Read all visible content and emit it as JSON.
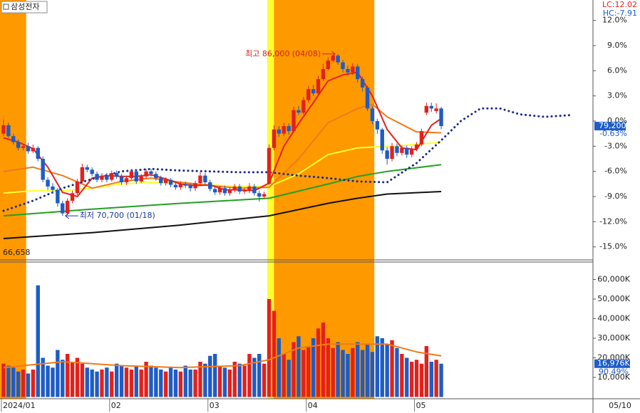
{
  "header": {
    "stock_name": "삼성전자",
    "lc": "LC:12.02",
    "hc": "HC:-7.91"
  },
  "chart_data": [
    {
      "type": "candlestick",
      "up_color": "#e3211c",
      "down_color": "#1e5cc6",
      "xlim": [
        -0.72,
        119.86
      ],
      "ylim": [
        -16.55,
        14.43
      ],
      "yticks": [
        {
          "value": 12,
          "label": "12.0%"
        },
        {
          "value": 9,
          "label": "9.0%"
        },
        {
          "value": 6,
          "label": "6.0%"
        },
        {
          "value": 3,
          "label": "3.0%"
        },
        {
          "value": 0,
          "label": "0.0%"
        },
        {
          "value": -3,
          "label": "-3.0%"
        },
        {
          "value": -6,
          "label": "-6.0%"
        },
        {
          "value": -9,
          "label": "-9.0%"
        },
        {
          "value": -12,
          "label": "-12.0%"
        },
        {
          "value": -15,
          "label": "-15.0%"
        }
      ],
      "highlights": [
        {
          "start": -0.72,
          "end": 4.6,
          "color": "#ff9900"
        },
        {
          "start": 53.6,
          "end": 55.0,
          "color": "#ffff33"
        },
        {
          "start": 55.0,
          "end": 75.4,
          "color": "#ff9900"
        }
      ],
      "open": [
        -1.5,
        -0.5,
        -1.8,
        -2.5,
        -3.2,
        -3.0,
        -3.6,
        -3.2,
        -4.5,
        -7.0,
        -7.8,
        -8.2,
        -9.8,
        -11.0,
        -9.5,
        -8.6,
        -7.2,
        -5.5,
        -5.8,
        -6.3,
        -7.0,
        -6.5,
        -7.0,
        -6.2,
        -6.6,
        -7.3,
        -6.8,
        -6.0,
        -7.2,
        -6.6,
        -6.0,
        -6.3,
        -6.8,
        -7.4,
        -7.0,
        -7.6,
        -7.9,
        -7.5,
        -7.7,
        -8.0,
        -7.4,
        -6.5,
        -7.3,
        -8.1,
        -8.5,
        -8.0,
        -8.6,
        -8.2,
        -7.8,
        -8.4,
        -8.3,
        -7.8,
        -8.6,
        -9.0,
        -7.5,
        -3.2,
        -1.0,
        -1.5,
        -0.6,
        -1.2,
        1.3,
        1.0,
        2.5,
        3.8,
        3.3,
        5.0,
        6.2,
        7.2,
        7.8,
        7.0,
        6.2,
        5.8,
        6.5,
        5.0,
        4.0,
        1.5,
        0.0,
        -1.0,
        -3.5,
        -4.5,
        -3.0,
        -3.8,
        -3.2,
        -4.0,
        -3.3,
        -2.8,
        1.0,
        1.8,
        1.2,
        1.5
      ],
      "high": [
        0.2,
        -0.2,
        -1.5,
        -2.2,
        -2.7,
        -2.6,
        -2.8,
        -3.0,
        -4.2,
        -6.7,
        -7.4,
        -8.0,
        -9.5,
        -9.2,
        -8.3,
        -6.9,
        -5.1,
        -5.2,
        -5.5,
        -6.0,
        -6.2,
        -6.2,
        -5.9,
        -5.9,
        -6.3,
        -6.5,
        -5.7,
        -5.8,
        -6.3,
        -5.7,
        -5.7,
        -6.0,
        -6.5,
        -6.7,
        -6.8,
        -7.3,
        -7.2,
        -7.2,
        -7.4,
        -7.1,
        -6.1,
        -6.2,
        -7.0,
        -7.8,
        -7.7,
        -7.7,
        -7.9,
        -7.5,
        -7.5,
        -8.0,
        -7.4,
        -7.5,
        -8.3,
        -8.4,
        -2.8,
        -0.5,
        -0.6,
        -0.2,
        -0.3,
        1.7,
        1.8,
        2.9,
        4.2,
        4.3,
        5.4,
        6.8,
        7.6,
        7.9,
        8.0,
        7.3,
        6.6,
        6.9,
        6.8,
        5.3,
        4.2,
        1.8,
        0.3,
        -0.8,
        -3.1,
        -2.6,
        -2.7,
        -2.9,
        -2.9,
        -3.0,
        -2.5,
        -0.9,
        2.2,
        2.2,
        2.1,
        1.7
      ],
      "low": [
        -1.8,
        -2.0,
        -2.8,
        -3.5,
        -3.5,
        -3.9,
        -3.8,
        -4.8,
        -7.3,
        -8.2,
        -8.6,
        -10.2,
        -11.3,
        -11.2,
        -9.8,
        -8.8,
        -7.4,
        -6.1,
        -6.6,
        -7.3,
        -7.3,
        -7.3,
        -7.2,
        -6.9,
        -7.6,
        -7.6,
        -7.0,
        -7.5,
        -7.4,
        -6.9,
        -6.6,
        -7.1,
        -7.7,
        -7.7,
        -7.9,
        -8.2,
        -8.2,
        -8.0,
        -8.4,
        -8.3,
        -7.6,
        -7.6,
        -8.4,
        -8.8,
        -8.8,
        -8.9,
        -8.9,
        -8.5,
        -8.7,
        -8.7,
        -8.6,
        -8.9,
        -9.6,
        -9.3,
        -7.6,
        -3.5,
        -1.9,
        -1.8,
        -1.6,
        -1.4,
        0.7,
        0.8,
        2.2,
        3.0,
        3.1,
        4.8,
        6.0,
        7.0,
        6.7,
        5.8,
        5.4,
        5.5,
        4.6,
        3.5,
        1.2,
        -0.4,
        -1.5,
        -3.9,
        -5.2,
        -4.8,
        -4.2,
        -4.1,
        -4.4,
        -4.3,
        -3.6,
        -3.0,
        0.7,
        1.1,
        0.9,
        -1.0
      ],
      "close": [
        -0.5,
        -1.8,
        -2.5,
        -3.2,
        -3.0,
        -3.6,
        -3.2,
        -4.5,
        -7.0,
        -7.8,
        -8.2,
        -9.8,
        -11.0,
        -9.5,
        -8.6,
        -7.2,
        -5.5,
        -5.8,
        -6.3,
        -7.0,
        -6.5,
        -7.0,
        -6.2,
        -6.6,
        -7.3,
        -6.8,
        -6.0,
        -7.2,
        -6.6,
        -6.0,
        -6.3,
        -6.8,
        -7.4,
        -7.0,
        -7.6,
        -7.9,
        -7.5,
        -7.7,
        -8.0,
        -7.4,
        -6.5,
        -7.3,
        -8.1,
        -8.5,
        -8.0,
        -8.6,
        -8.2,
        -7.8,
        -8.4,
        -8.3,
        -7.8,
        -8.6,
        -9.0,
        -8.7,
        -3.2,
        -1.0,
        -1.5,
        -0.6,
        -1.2,
        1.3,
        1.0,
        2.5,
        3.8,
        3.3,
        5.0,
        6.2,
        7.2,
        7.8,
        7.0,
        6.2,
        5.8,
        6.5,
        5.0,
        4.0,
        1.5,
        0.0,
        -1.0,
        -3.5,
        -4.5,
        -3.0,
        -3.8,
        -3.2,
        -4.0,
        -3.3,
        -2.8,
        -1.2,
        1.8,
        1.5,
        1.5,
        -0.6
      ],
      "lines": [
        {
          "color": "#111111",
          "style": "solid",
          "x": [
            0,
            18,
            36,
            54,
            66,
            72,
            78,
            89
          ],
          "values": [
            -14.0,
            -13.3,
            -12.4,
            -11.3,
            -9.8,
            -9.2,
            -8.7,
            -8.4
          ]
        },
        {
          "color": "#22a022",
          "style": "solid",
          "x": [
            0,
            18,
            36,
            54,
            66,
            72,
            78,
            89
          ],
          "values": [
            -11.3,
            -10.5,
            -9.8,
            -9.2,
            -7.5,
            -6.6,
            -6.0,
            -5.2
          ]
        },
        {
          "color": "#ffff33",
          "style": "solid",
          "x": [
            0,
            6,
            12,
            18,
            24,
            30,
            36,
            42,
            48,
            54,
            60,
            66,
            72,
            78,
            84,
            89
          ],
          "values": [
            -8.6,
            -8.3,
            -8.3,
            -8.0,
            -7.5,
            -7.3,
            -7.4,
            -7.6,
            -7.8,
            -7.8,
            -6.3,
            -4.0,
            -3.2,
            -3.0,
            -2.8,
            -2.5
          ]
        },
        {
          "color": "#f07a1a",
          "style": "solid",
          "x": [
            0,
            6,
            12,
            18,
            24,
            30,
            36,
            42,
            48,
            54,
            60,
            66,
            72,
            75,
            78,
            84,
            89
          ],
          "values": [
            -6.0,
            -5.5,
            -6.5,
            -8.0,
            -7.2,
            -6.8,
            -7.3,
            -7.7,
            -8.0,
            -7.9,
            -4.5,
            -0.2,
            1.5,
            2.0,
            0.5,
            -1.3,
            -1.4
          ]
        },
        {
          "color": "#e3211c",
          "style": "solid",
          "x": [
            0,
            3,
            6,
            9,
            12,
            15,
            18,
            21,
            24,
            27,
            30,
            33,
            36,
            39,
            42,
            45,
            48,
            51,
            54,
            57,
            60,
            63,
            66,
            69,
            72,
            75,
            78,
            81,
            84,
            87,
            89
          ],
          "values": [
            -2.0,
            -2.5,
            -3.3,
            -5.5,
            -8.5,
            -9.0,
            -6.8,
            -6.5,
            -6.6,
            -6.6,
            -6.4,
            -6.9,
            -7.5,
            -7.7,
            -7.6,
            -8.2,
            -8.2,
            -8.3,
            -7.4,
            -3.0,
            -0.3,
            2.2,
            4.8,
            5.5,
            5.8,
            3.0,
            -1.0,
            -3.2,
            -3.4,
            -0.5,
            0.3
          ]
        },
        {
          "color": "#1a2a8a",
          "style": "dotted",
          "x": [
            0,
            6,
            12,
            18,
            24,
            30,
            36,
            42,
            48,
            54,
            60,
            66,
            72,
            78,
            84,
            89,
            93,
            97,
            101,
            105,
            110,
            115
          ],
          "values": [
            -10.7,
            -9.5,
            -8.0,
            -6.9,
            -6.0,
            -5.7,
            -5.9,
            -6.0,
            -6.1,
            -6.1,
            -6.5,
            -6.8,
            -7.2,
            -7.3,
            -5.0,
            -2.3,
            0.0,
            1.5,
            1.5,
            0.8,
            0.5,
            0.7
          ]
        }
      ],
      "high_label": "최고 86,000 (04/08)",
      "low_label": "최저 70,700 (01/18)",
      "bottom_label": "66,658",
      "last_price_label": "79,200",
      "last_change_label": "-0.63%"
    },
    {
      "type": "bar",
      "xlim": [
        -0.72,
        119.86
      ],
      "ylim": [
        0,
        68900
      ],
      "yticks": [
        {
          "value": 10000,
          "label": "10,000K"
        },
        {
          "value": 20000,
          "label": "20,000K"
        },
        {
          "value": 30000,
          "label": "30,000K"
        },
        {
          "value": 40000,
          "label": "40,000K"
        },
        {
          "value": 50000,
          "label": "50,000K"
        },
        {
          "value": 60000,
          "label": "60,000K"
        }
      ],
      "values": [
        17000,
        16000,
        15000,
        13000,
        14000,
        12000,
        14000,
        57000,
        20000,
        16000,
        15000,
        24000,
        19000,
        22000,
        18000,
        20000,
        17000,
        15000,
        14000,
        13000,
        14000,
        15000,
        13000,
        17000,
        16000,
        15000,
        14000,
        16000,
        14000,
        18000,
        16000,
        15000,
        14000,
        13000,
        15000,
        14000,
        13000,
        16000,
        14000,
        14000,
        18000,
        17000,
        21000,
        22000,
        16000,
        15000,
        14000,
        18000,
        17000,
        16000,
        22000,
        20000,
        22000,
        17000,
        50000,
        44000,
        30000,
        22000,
        19000,
        28000,
        31000,
        24000,
        26000,
        30000,
        35000,
        38000,
        30000,
        25000,
        28000,
        24000,
        22000,
        25000,
        28000,
        24000,
        27000,
        23000,
        31000,
        30000,
        27000,
        29000,
        25000,
        22000,
        20000,
        18000,
        19000,
        17000,
        26000,
        18000,
        19000,
        17000
      ],
      "lines": [
        {
          "color": "#f07a1a",
          "style": "solid",
          "x": [
            0,
            12,
            24,
            36,
            48,
            54,
            60,
            66,
            72,
            78,
            84,
            89
          ],
          "values": [
            15000,
            18000,
            16000,
            15000,
            16000,
            19000,
            25000,
            27000,
            27000,
            27000,
            23000,
            21000
          ]
        }
      ],
      "xticks": [
        {
          "value": 0,
          "label": "2024/01"
        },
        {
          "value": 22,
          "label": "02"
        },
        {
          "value": 42,
          "label": "03"
        },
        {
          "value": 62,
          "label": "04"
        },
        {
          "value": 84,
          "label": "05"
        }
      ],
      "end_label": "05/10",
      "last_value_label": "16,976K",
      "ratio_label": "90.49%"
    }
  ]
}
